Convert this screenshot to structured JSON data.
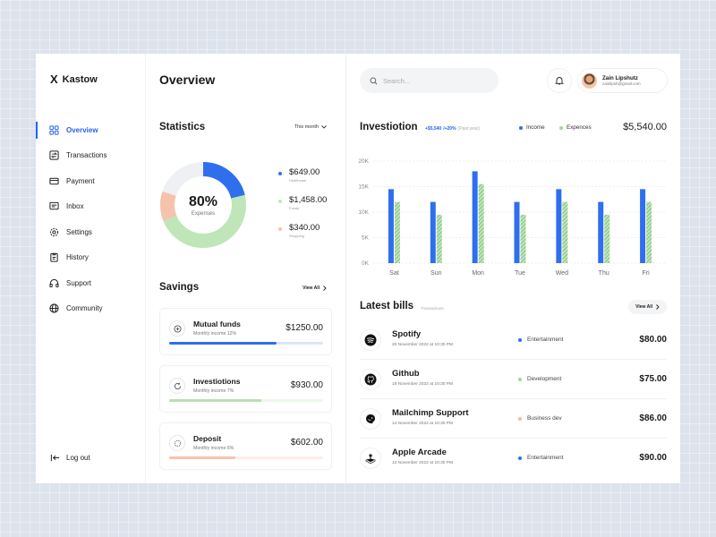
{
  "brand": {
    "name": "Kastow",
    "logo": "X"
  },
  "nav": [
    {
      "label": "Overview",
      "icon": "grid-icon",
      "active": true
    },
    {
      "label": "Transactions",
      "icon": "transfer-icon",
      "active": false
    },
    {
      "label": "Payment",
      "icon": "card-icon",
      "active": false
    },
    {
      "label": "Inbox",
      "icon": "inbox-icon",
      "active": false
    },
    {
      "label": "Settings",
      "icon": "gear-icon",
      "active": false
    },
    {
      "label": "History",
      "icon": "clipboard-icon",
      "active": false
    },
    {
      "label": "Support",
      "icon": "headphones-icon",
      "active": false
    },
    {
      "label": "Community",
      "icon": "globe-icon",
      "active": false
    }
  ],
  "logout_label": "Log out",
  "overview": {
    "title": "Overview",
    "statistics": {
      "title": "Statistics",
      "period": "This month",
      "percent": "80%",
      "percent_label": "Expenses",
      "segments": [
        {
          "amount": "$649.00",
          "category": "Healthcare",
          "color": "#2f6fed",
          "value": 649
        },
        {
          "amount": "$1,458.00",
          "category": "Foods",
          "color": "#bfe5b8",
          "value": 1458
        },
        {
          "amount": "$340.00",
          "category": "Shopping",
          "color": "#f7c2ab",
          "value": 340
        }
      ],
      "remaining_color": "#eef0f3"
    },
    "savings": {
      "title": "Savings",
      "view_all": "View All",
      "items": [
        {
          "name": "Mutual funds",
          "sub": "Monthly income 12%",
          "amount": "$1250.00",
          "progress": 0.7,
          "color": "#2f6fed",
          "track": "#dbe6fb",
          "icon": "plus-circle-icon"
        },
        {
          "name": "Investiotions",
          "sub": "Monthly income 7%",
          "amount": "$930.00",
          "progress": 0.6,
          "color": "#b7e0b0",
          "track": "#edf7eb",
          "icon": "refresh-icon"
        },
        {
          "name": "Deposit",
          "sub": "Monthly income 6%",
          "amount": "$602.00",
          "progress": 0.43,
          "color": "#f7c2ab",
          "track": "#fdeee7",
          "icon": "loader-icon"
        }
      ]
    }
  },
  "topbar": {
    "search_placeholder": "Search...",
    "user_name": "Zain Lipshutz",
    "user_email": "zainlipsh@gmail.com"
  },
  "investiotion": {
    "title": "Investiotion",
    "change_amount": "+$5,540",
    "change_pct": "/+20%",
    "change_period": "(Past year)",
    "legend_income": "Income",
    "legend_expences": "Expences",
    "total": "$5,540.00"
  },
  "chart_data": {
    "type": "bar",
    "categories": [
      "Sat",
      "Sun",
      "Mon",
      "Tue",
      "Wed",
      "Thu",
      "Fri"
    ],
    "series": [
      {
        "name": "Income",
        "color": "#2f6fed",
        "values": [
          14.5,
          12,
          18,
          12,
          14.5,
          12,
          14.5
        ]
      },
      {
        "name": "Expences",
        "color": "#bfe5b8",
        "values": [
          12,
          9.5,
          15.5,
          9.5,
          12,
          9.5,
          12
        ]
      }
    ],
    "y_ticks": [
      "0K",
      "5K",
      "10K",
      "15K",
      "20K"
    ],
    "ylim": [
      0,
      20
    ],
    "grid": true
  },
  "bills": {
    "title": "Latest bills",
    "sub": "Transactions",
    "view_all": "View All",
    "items": [
      {
        "name": "Spotify",
        "date": "20 November 2022 at 10:30 PM",
        "category": "Entertainment",
        "cat_color": "#2f6fed",
        "amount": "$80.00",
        "icon": "spotify-icon"
      },
      {
        "name": "Github",
        "date": "18 November 2022 at 10:30 PM",
        "category": "Development",
        "cat_color": "#9fd896",
        "amount": "$75.00",
        "icon": "github-icon"
      },
      {
        "name": "Mailchimp Support",
        "date": "14 November 2022 at 10:30 PM",
        "category": "Business dev",
        "cat_color": "#f7b79c",
        "amount": "$86.00",
        "icon": "mailchimp-icon"
      },
      {
        "name": "Apple Arcade",
        "date": "12 November 2022 at 10:30 PM",
        "category": "Entertainment",
        "cat_color": "#2f6fed",
        "amount": "$90.00",
        "icon": "arcade-icon"
      }
    ]
  }
}
